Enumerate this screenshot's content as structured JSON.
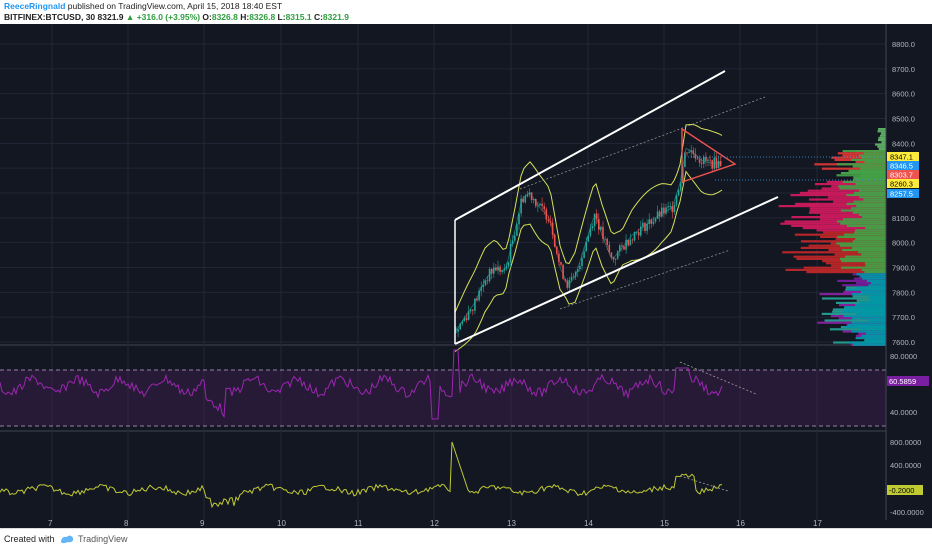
{
  "header": {
    "author": "ReeceRingnald",
    "published": "published on TradingView.com, April 15, 2018 18:40 EST",
    "symbol": "BITFINEX:BTCUSD, 30",
    "last": "8321.9",
    "change": "+316.0 (+3.95%)",
    "ohlc": {
      "o": "8326.8",
      "h": "8326.8",
      "l": "8315.1",
      "c": "8321.9"
    }
  },
  "price_axis": {
    "ticks": [
      "8800.0",
      "8700.0",
      "8600.0",
      "8500.0",
      "8400.0",
      "8100.0",
      "8000.0",
      "7900.0",
      "7800.0",
      "7700.0",
      "7600.0"
    ],
    "labels": [
      {
        "text": "8347.1",
        "bg": "#ffeb3b",
        "fg": "#000000"
      },
      {
        "text": "8346.5",
        "bg": "#2196f3",
        "fg": "#ffffff"
      },
      {
        "text": "8303.7",
        "bg": "#ef5350",
        "fg": "#ffffff"
      },
      {
        "text": "8260.3",
        "bg": "#ffeb3b",
        "fg": "#000000"
      },
      {
        "text": "8257.5",
        "bg": "#2196f3",
        "fg": "#ffffff"
      }
    ]
  },
  "rsi_axis": {
    "ticks": [
      "80.0000",
      "40.0000"
    ],
    "value": "60.5859"
  },
  "osc_axis": {
    "ticks": [
      "800.0000",
      "400.0000",
      "-400.0000"
    ],
    "value": "-0.2000"
  },
  "time_axis": {
    "labels": [
      "7",
      "8",
      "9",
      "10",
      "11",
      "12",
      "13",
      "14",
      "15",
      "16",
      "17"
    ]
  },
  "colors": {
    "background": "#131722",
    "up": "#26a69a",
    "down": "#ef5350",
    "bands": "#d4e157",
    "rsi": "#9c27b0",
    "channel": "#ffffff"
  },
  "footer": {
    "created_with": "Created with",
    "brand": "TradingView"
  }
}
